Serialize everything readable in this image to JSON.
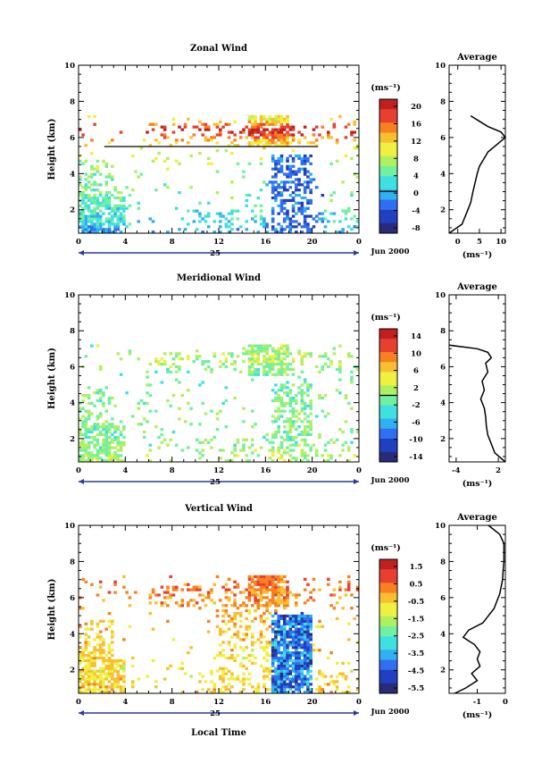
{
  "chart_data": [
    {
      "type": "heatmap",
      "title": "Zonal Wind",
      "ylabel": "Height (km)",
      "x_ticks": [
        "0",
        "4",
        "8",
        "12",
        "16",
        "20",
        "0"
      ],
      "xlim": [
        0,
        24
      ],
      "y_ticks": [
        "2",
        "4",
        "6",
        "8",
        "10"
      ],
      "ylim": [
        0.7,
        10
      ],
      "date_label": "25",
      "month_label": "Jun 2000",
      "colorbar": {
        "unit": "(ms⁻¹)",
        "ticks": [
          "20",
          "16",
          "12",
          "8",
          "4",
          "0",
          "-4",
          "-8"
        ],
        "range": [
          -10,
          22
        ],
        "zero_line": 0
      },
      "field": {
        "kind": "zonal",
        "profile_heights": [
          0.7,
          1.2,
          2.0,
          2.6,
          3.2,
          3.8,
          4.2,
          4.6,
          5.0,
          5.3,
          5.6,
          5.9,
          6.2,
          6.5,
          7.0
        ],
        "profile_values": [
          -2,
          1,
          3,
          4,
          5,
          5,
          6,
          7,
          8,
          9,
          11,
          14,
          18,
          20,
          10
        ]
      },
      "average_panel": {
        "title": "Average",
        "unit": "(ms⁻¹)",
        "x_ticks": [
          "0",
          "5",
          "10"
        ],
        "xlim": [
          -2,
          11
        ],
        "y_ticks": [
          "2",
          "4",
          "6",
          "8",
          "10"
        ],
        "profile": {
          "height": [
            0.7,
            1.2,
            1.8,
            2.4,
            3.0,
            3.5,
            4.0,
            4.4,
            4.8,
            5.2,
            5.6,
            6.0,
            6.3,
            6.6,
            6.9,
            7.2
          ],
          "value": [
            -2,
            1,
            2,
            3,
            3.5,
            4,
            4.5,
            5,
            6,
            7,
            9,
            11,
            10,
            7,
            5,
            3
          ]
        }
      }
    },
    {
      "type": "heatmap",
      "title": "Meridional Wind",
      "ylabel": "Height (km)",
      "x_ticks": [
        "0",
        "4",
        "8",
        "12",
        "16",
        "20",
        "0"
      ],
      "xlim": [
        0,
        24
      ],
      "y_ticks": [
        "2",
        "4",
        "6",
        "8",
        "10"
      ],
      "ylim": [
        0.7,
        10
      ],
      "date_label": "25",
      "month_label": "Jun 2000",
      "colorbar": {
        "unit": "(ms⁻¹)",
        "ticks": [
          "14",
          "10",
          "6",
          "2",
          "-2",
          "-6",
          "-10",
          "-14"
        ],
        "range": [
          -16,
          16
        ],
        "zero_line": 0
      },
      "field": {
        "kind": "meridional",
        "profile_heights": [
          0.7,
          1.5,
          2.5,
          3.5,
          4.5,
          5.5,
          6.5,
          7.0
        ],
        "profile_values": [
          1,
          0,
          -1,
          0,
          -1,
          -2,
          2,
          0
        ]
      },
      "average_panel": {
        "title": "Average",
        "unit": "(ms⁻¹)",
        "x_ticks": [
          "-4",
          "2"
        ],
        "xlim": [
          -5,
          3
        ],
        "y_ticks": [
          "2",
          "4",
          "6",
          "8",
          "10"
        ],
        "profile": {
          "height": [
            0.7,
            1.2,
            1.7,
            2.2,
            2.7,
            3.2,
            3.7,
            4.2,
            4.7,
            5.2,
            5.7,
            6.2,
            6.5,
            6.8,
            7.0,
            7.2
          ],
          "value": [
            3,
            1.5,
            1,
            0.5,
            0.3,
            0.2,
            0,
            -0.5,
            0,
            -0.3,
            0.5,
            0.2,
            1,
            0.5,
            -1,
            -5
          ]
        }
      }
    },
    {
      "type": "heatmap",
      "title": "Vertical Wind",
      "ylabel": "Height (km)",
      "xlabel": "Local Time",
      "x_ticks": [
        "0",
        "4",
        "8",
        "12",
        "16",
        "20",
        "0"
      ],
      "xlim": [
        0,
        24
      ],
      "y_ticks": [
        "2",
        "4",
        "6",
        "8",
        "10"
      ],
      "ylim": [
        0.7,
        10
      ],
      "date_label": "25",
      "month_label": "Jun 2000",
      "colorbar": {
        "unit": "(ms⁻¹)",
        "ticks": [
          "1.5",
          "0.5",
          "-0.5",
          "-1.5",
          "-2.5",
          "-3.5",
          "-4.5",
          "-5.5"
        ],
        "range": [
          -6,
          2
        ]
      },
      "field": {
        "kind": "vertical",
        "profile_heights": [
          0.7,
          2.0,
          3.5,
          5.0,
          6.0,
          7.0
        ],
        "profile_values": [
          -0.5,
          -0.8,
          -0.6,
          -0.2,
          0.3,
          0.5
        ]
      },
      "average_panel": {
        "title": "Average",
        "unit": "(ms⁻¹)",
        "x_ticks": [
          "-1",
          "0"
        ],
        "xlim": [
          -2,
          0
        ],
        "y_ticks": [
          "2",
          "4",
          "6",
          "8",
          "10"
        ],
        "profile": {
          "height": [
            0.7,
            1.0,
            1.4,
            1.8,
            2.2,
            2.6,
            3.0,
            3.4,
            3.8,
            4.2,
            4.6,
            5.0,
            5.4,
            5.8,
            6.2,
            6.6,
            7.0,
            7.5,
            8.0,
            9.0,
            9.5,
            10.0
          ],
          "value": [
            -1.8,
            -1.4,
            -1.0,
            -1.2,
            -0.9,
            -1.0,
            -0.9,
            -1.1,
            -1.5,
            -1.3,
            -0.8,
            -0.6,
            -0.4,
            -0.3,
            -0.2,
            -0.15,
            -0.1,
            -0.08,
            -0.05,
            -0.05,
            -0.2,
            -0.6
          ]
        }
      }
    }
  ],
  "colormap": [
    "#2a2a7a",
    "#2040c0",
    "#3070f0",
    "#30b0f0",
    "#40e0e0",
    "#70f0a0",
    "#b0f060",
    "#f0f040",
    "#f8c030",
    "#f88020",
    "#e84030",
    "#c02020"
  ]
}
